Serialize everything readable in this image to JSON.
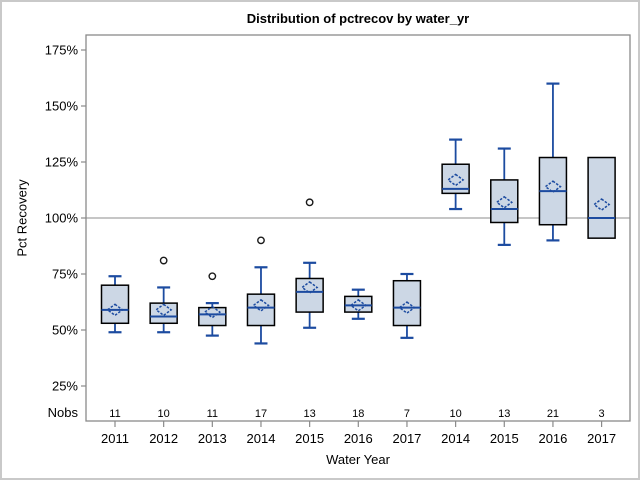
{
  "chart_data": {
    "type": "box",
    "title": "Distribution of pctrecov by water_yr",
    "xlabel": "Water Year",
    "ylabel": "Pct Recovery",
    "nobs_row_label": "Nobs",
    "grid": false,
    "legend": "none",
    "reference_line_y": 100,
    "y_axis": {
      "tick_values": [
        175,
        150,
        125,
        100,
        75,
        50,
        25
      ],
      "tick_suffix": "%",
      "range_shown": [
        25,
        175
      ]
    },
    "categories": [
      "2011",
      "2012",
      "2013",
      "2014",
      "2015",
      "2016",
      "2017",
      "2014",
      "2015",
      "2016",
      "2017"
    ],
    "nobs": [
      11,
      10,
      11,
      17,
      13,
      18,
      7,
      10,
      13,
      21,
      3
    ],
    "series": [
      {
        "year": "2011",
        "nobs": 11,
        "whisker_low": 49,
        "q1": 53,
        "median": 59,
        "q3": 70,
        "whisker_high": 74,
        "mean": 59,
        "outliers": []
      },
      {
        "year": "2012",
        "nobs": 10,
        "whisker_low": 49,
        "q1": 53,
        "median": 56,
        "q3": 62,
        "whisker_high": 69,
        "mean": 59,
        "outliers": [
          81
        ]
      },
      {
        "year": "2013",
        "nobs": 11,
        "whisker_low": 47.5,
        "q1": 52,
        "median": 57,
        "q3": 60,
        "whisker_high": 62,
        "mean": 58,
        "outliers": [
          74
        ]
      },
      {
        "year": "2014",
        "nobs": 17,
        "whisker_low": 44,
        "q1": 52,
        "median": 60,
        "q3": 66,
        "whisker_high": 78,
        "mean": 61,
        "outliers": [
          90
        ]
      },
      {
        "year": "2015",
        "nobs": 13,
        "whisker_low": 51,
        "q1": 58,
        "median": 67,
        "q3": 73,
        "whisker_high": 80,
        "mean": 69,
        "outliers": [
          107
        ]
      },
      {
        "year": "2016",
        "nobs": 18,
        "whisker_low": 55,
        "q1": 58,
        "median": 61,
        "q3": 65,
        "whisker_high": 68,
        "mean": 61,
        "outliers": []
      },
      {
        "year": "2017",
        "nobs": 7,
        "whisker_low": 46.5,
        "q1": 52,
        "median": 60,
        "q3": 72,
        "whisker_high": 75,
        "mean": 60,
        "outliers": []
      },
      {
        "year": "2014",
        "nobs": 10,
        "whisker_low": 104,
        "q1": 111,
        "median": 113,
        "q3": 124,
        "whisker_high": 135,
        "mean": 117,
        "outliers": []
      },
      {
        "year": "2015",
        "nobs": 13,
        "whisker_low": 88,
        "q1": 98,
        "median": 104,
        "q3": 117,
        "whisker_high": 131,
        "mean": 107,
        "outliers": []
      },
      {
        "year": "2016",
        "nobs": 21,
        "whisker_low": 90,
        "q1": 97,
        "median": 112,
        "q3": 127,
        "whisker_high": 160,
        "mean": 114,
        "outliers": []
      },
      {
        "year": "2017",
        "nobs": 3,
        "whisker_low": 91,
        "q1": 91,
        "median": 100,
        "q3": 127,
        "whisker_high": 127,
        "mean": 106,
        "outliers": []
      }
    ],
    "colors": {
      "box_fill": "#ccd7e5",
      "box_stroke": "#000000",
      "line_blue": "#1c4ba0",
      "frame_gray": "#8a8a8a",
      "reference_line_gray": "#a3a3a3",
      "outlier_stroke": "#1a1a1a",
      "text": "#000000",
      "page_border": "#c9c9c9"
    }
  }
}
